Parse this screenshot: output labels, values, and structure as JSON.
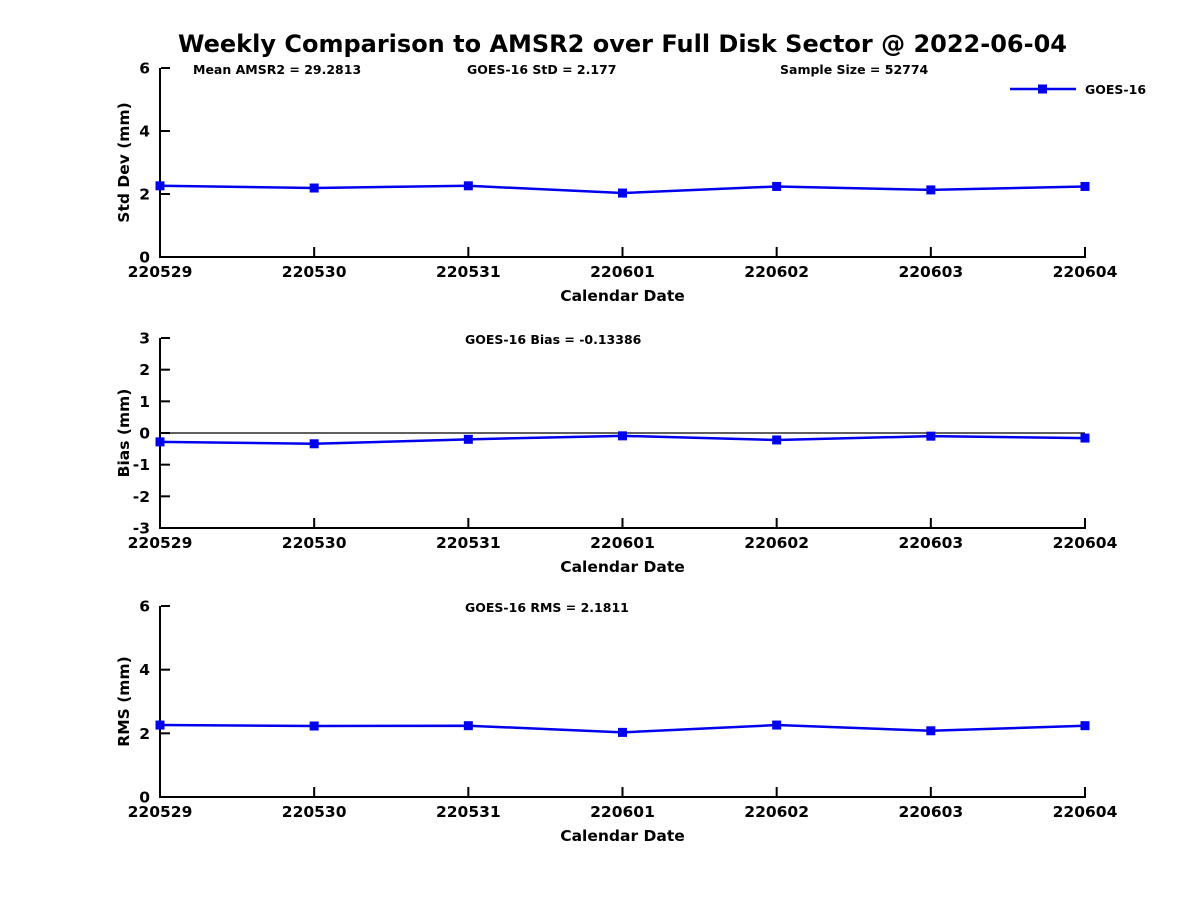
{
  "page": {
    "title": "Weekly Comparison to AMSR2 over Full Disk Sector @ 2022-06-04"
  },
  "legend": {
    "label": "GOES-16",
    "position": "top-right",
    "marker": "square"
  },
  "colors": {
    "series": "#0000ee",
    "axis": "#000000",
    "text": "#000000",
    "background": "#ffffff"
  },
  "chart_data": [
    {
      "id": "std-dev",
      "type": "line",
      "marker": "square",
      "title": "",
      "annotations": [
        "Mean AMSR2 = 29.2813",
        "GOES-16 StD = 2.177",
        "Sample Size = 52774"
      ],
      "categories": [
        "220529",
        "220530",
        "220531",
        "220601",
        "220602",
        "220603",
        "220604"
      ],
      "series": [
        {
          "name": "GOES-16",
          "values": [
            2.26,
            2.19,
            2.26,
            2.03,
            2.24,
            2.13,
            2.24
          ]
        }
      ],
      "xlabel": "Calendar Date",
      "ylabel": "Std Dev (mm)",
      "ylim": [
        0,
        6
      ],
      "yticks": [
        0,
        2,
        4,
        6
      ],
      "grid": false,
      "zero_line": false
    },
    {
      "id": "bias",
      "type": "line",
      "marker": "square",
      "title": "",
      "annotations": [
        "GOES-16 Bias  = -0.13386"
      ],
      "categories": [
        "220529",
        "220530",
        "220531",
        "220601",
        "220602",
        "220603",
        "220604"
      ],
      "series": [
        {
          "name": "GOES-16",
          "values": [
            -0.28,
            -0.34,
            -0.2,
            -0.09,
            -0.22,
            -0.1,
            -0.16
          ]
        }
      ],
      "xlabel": "Calendar Date",
      "ylabel": "Bias (mm)",
      "ylim": [
        -3,
        3
      ],
      "yticks": [
        -3,
        -2,
        -1,
        0,
        1,
        2,
        3
      ],
      "grid": false,
      "zero_line": true
    },
    {
      "id": "rms",
      "type": "line",
      "marker": "square",
      "title": "",
      "annotations": [
        "GOES-16 RMS = 2.1811"
      ],
      "categories": [
        "220529",
        "220530",
        "220531",
        "220601",
        "220602",
        "220603",
        "220604"
      ],
      "series": [
        {
          "name": "GOES-16",
          "values": [
            2.26,
            2.23,
            2.24,
            2.03,
            2.26,
            2.08,
            2.24
          ]
        }
      ],
      "xlabel": "Calendar Date",
      "ylabel": "RMS (mm)",
      "ylim": [
        0,
        6
      ],
      "yticks": [
        0,
        2,
        4,
        6
      ],
      "grid": false,
      "zero_line": false
    }
  ]
}
